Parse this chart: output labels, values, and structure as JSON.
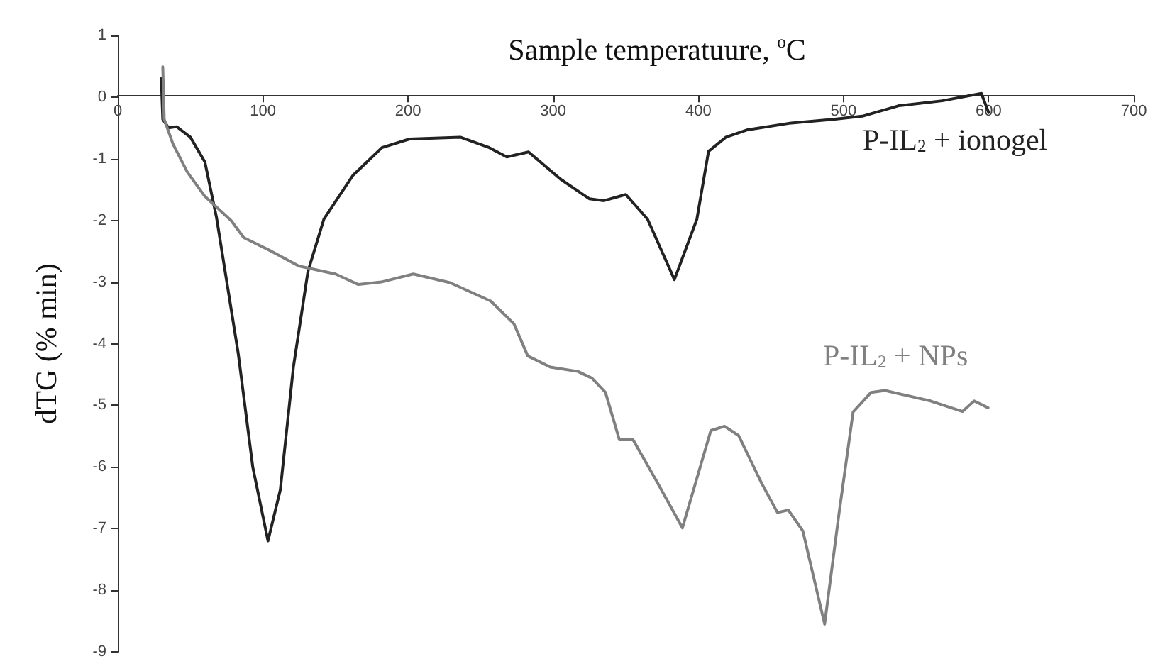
{
  "chart_data": {
    "type": "line",
    "xlabel": "Sample temperatuure, $^{o}$C",
    "ylabel": "dTG (% min)",
    "xlim": [
      0,
      700
    ],
    "xticks": [
      0,
      100,
      200,
      300,
      400,
      500,
      600,
      700
    ],
    "ylim": [
      -9,
      1
    ],
    "yticks": [
      -9,
      -8,
      -7,
      -6,
      -5,
      -4,
      -3,
      -2,
      -1,
      0,
      1
    ],
    "grid": false,
    "legend": false,
    "marker": "none",
    "line_style": "solid",
    "series": [
      {
        "name": "P-IL$_{2}$ + ionogel",
        "color": "#222222",
        "x": [
          30,
          31,
          35,
          40.6,
          50,
          60,
          68,
          83,
          93,
          103.5,
          112,
          121,
          131,
          142,
          162,
          182,
          201,
          236,
          256,
          268,
          283,
          305,
          325,
          335,
          350,
          362,
          365,
          383.5,
          399,
          407,
          419,
          434,
          464,
          493,
          513,
          538,
          568,
          595,
          600
        ],
        "values": [
          0.3,
          -0.36,
          -0.5,
          -0.48,
          -0.65,
          -1.05,
          -1.95,
          -4.16,
          -6.0,
          -7.2,
          -6.37,
          -4.38,
          -2.83,
          -1.98,
          -1.27,
          -0.82,
          -0.68,
          -0.65,
          -0.82,
          -0.97,
          -0.89,
          -1.33,
          -1.65,
          -1.68,
          -1.58,
          -1.9,
          -1.98,
          -2.96,
          -1.98,
          -0.88,
          -0.65,
          -0.53,
          -0.42,
          -0.36,
          -0.31,
          -0.14,
          -0.06,
          0.06,
          -0.25
        ]
      },
      {
        "name": "P-IL$_{2}$ + NPs",
        "color": "#808080",
        "x": [
          31,
          32,
          38,
          48,
          60,
          78,
          86.8,
          105.8,
          124.7,
          150,
          165.7,
          181.5,
          203.6,
          228.9,
          257,
          273,
          282.5,
          298,
          317,
          326.7,
          336,
          345.6,
          355,
          371,
          389,
          408.6,
          418,
          427.7,
          443.5,
          454.5,
          462,
          472,
          487,
          497,
          506.6,
          519,
          528.6,
          560,
          582,
          590,
          599.6
        ],
        "values": [
          0.49,
          -0.36,
          -0.76,
          -1.22,
          -1.61,
          -2.0,
          -2.28,
          -2.5,
          -2.74,
          -2.87,
          -3.04,
          -3.0,
          -2.87,
          -3.01,
          -3.31,
          -3.68,
          -4.2,
          -4.38,
          -4.45,
          -4.56,
          -4.79,
          -5.56,
          -5.56,
          -6.22,
          -6.99,
          -5.41,
          -5.34,
          -5.49,
          -6.26,
          -6.74,
          -6.7,
          -7.04,
          -8.55,
          -6.74,
          -5.11,
          -4.79,
          -4.76,
          -4.93,
          -5.1,
          -4.93,
          -5.04
        ]
      }
    ]
  }
}
